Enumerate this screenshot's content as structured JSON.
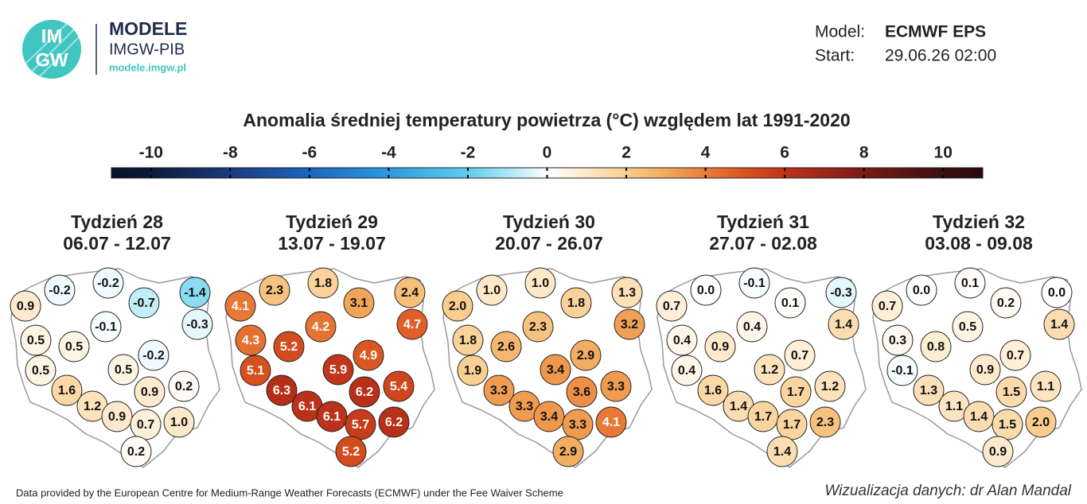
{
  "header": {
    "logo_top": "IM",
    "logo_bottom": "GW",
    "brand": "MODELE",
    "org": "IMGW-PIB",
    "url": "modele.imgw.pl"
  },
  "model": {
    "label": "Model:",
    "value": "ECMWF EPS"
  },
  "start": {
    "label": "Start:",
    "value": "29.06.26 02:00"
  },
  "title": "Anomalia średniej temperatury powietrza (°C) względem lat 1991-2020",
  "colorbar": {
    "lim": [
      -11,
      11
    ],
    "ticks": [
      -10,
      -8,
      -6,
      -4,
      -2,
      0,
      2,
      4,
      6,
      8,
      10
    ]
  },
  "panels": [
    {
      "title": "Tydzień 28",
      "dates": "06.07 - 12.07",
      "values": [
        0.9,
        -0.2,
        -0.2,
        -0.7,
        -1.4,
        -0.1,
        -0.3,
        0.5,
        0.5,
        -0.2,
        0.5,
        0.5,
        1.6,
        1.2,
        0.9,
        0.2,
        0.9,
        0.7,
        1.0,
        0.2
      ],
      "value_labels": [
        "0.9",
        "-0.2",
        "-0.2",
        "-0.7",
        "-1.4",
        "-0.1",
        "-0.3",
        "0.5",
        "0.5",
        "-0.2",
        "0.5",
        "0.5",
        "1.6",
        "1.2",
        "0.9",
        "0.2",
        "0.9",
        "0.7",
        "1.0",
        "0.2"
      ]
    },
    {
      "title": "Tydzień 29",
      "dates": "13.07 - 19.07",
      "values": [
        4.1,
        2.3,
        1.8,
        3.1,
        2.4,
        4.2,
        4.7,
        4.3,
        5.2,
        4.9,
        5.1,
        5.9,
        6.3,
        6.1,
        6.2,
        5.4,
        6.1,
        5.7,
        6.2,
        5.2
      ],
      "value_labels": [
        "4.1",
        "2.3",
        "1.8",
        "3.1",
        "2.4",
        "4.2",
        "4.7",
        "4.3",
        "5.2",
        "4.9",
        "5.1",
        "5.9",
        "6.3",
        "6.1",
        "6.2",
        "5.4",
        "6.1",
        "5.7",
        "6.2",
        "5.2"
      ]
    },
    {
      "title": "Tydzień 30",
      "dates": "20.07 - 26.07",
      "values": [
        2.0,
        1.0,
        1.0,
        1.8,
        1.3,
        2.3,
        3.2,
        1.8,
        2.6,
        2.9,
        1.9,
        3.4,
        3.3,
        3.3,
        3.6,
        3.3,
        3.4,
        3.3,
        4.1,
        2.9
      ],
      "value_labels": [
        "2.0",
        "1.0",
        "1.0",
        "1.8",
        "1.3",
        "2.3",
        "3.2",
        "1.8",
        "2.6",
        "2.9",
        "1.9",
        "3.4",
        "3.3",
        "3.3",
        "3.6",
        "3.3",
        "3.4",
        "3.3",
        "4.1",
        "2.9"
      ]
    },
    {
      "title": "Tydzień 31",
      "dates": "27.07 - 02.08",
      "values": [
        0.7,
        0.0,
        -0.1,
        0.1,
        -0.3,
        0.4,
        1.4,
        0.4,
        0.9,
        0.7,
        0.4,
        1.2,
        1.6,
        1.4,
        1.7,
        1.2,
        1.7,
        1.7,
        2.3,
        1.4
      ],
      "value_labels": [
        "0.7",
        "0.0",
        "-0.1",
        "0.1",
        "-0.3",
        "0.4",
        "1.4",
        "0.4",
        "0.9",
        "0.7",
        "0.4",
        "1.2",
        "1.6",
        "1.4",
        "1.7",
        "1.2",
        "1.7",
        "1.7",
        "2.3",
        "1.4"
      ]
    },
    {
      "title": "Tydzień 32",
      "dates": "03.08 - 09.08",
      "values": [
        0.7,
        0.0,
        0.1,
        0.2,
        0.0,
        0.5,
        1.4,
        0.3,
        0.8,
        0.7,
        -0.1,
        0.9,
        1.3,
        1.1,
        1.5,
        1.1,
        1.4,
        1.5,
        2.0,
        0.9
      ],
      "value_labels": [
        "0.7",
        "0.0",
        "0.1",
        "0.2",
        "0.0",
        "0.5",
        "1.4",
        "0.3",
        "0.8",
        "0.7",
        "-0.1",
        "0.9",
        "1.3",
        "1.1",
        "1.5",
        "1.1",
        "1.4",
        "1.5",
        "2.0",
        "0.9"
      ]
    }
  ],
  "footer": {
    "source": "Data provided by the European Centre for Medium-Range Weather Forecasts (ECMWF) under the Fee Waiver Scheme",
    "credit": "Wizualizacja danych: dr Alan Mandal"
  }
}
